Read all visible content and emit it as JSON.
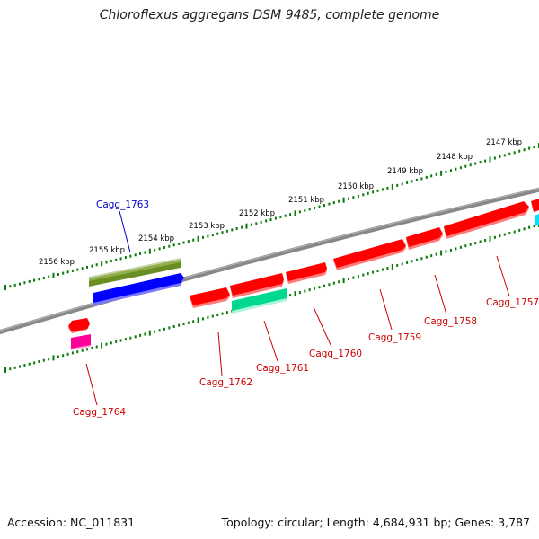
{
  "title": "Chloroflexus aggregans DSM 9485, complete genome",
  "footer": {
    "accession_label": "Accession: NC_011831",
    "genome_info": "Topology: circular; Length: 4,684,931 bp; Genes: 3,787"
  },
  "scale_labels": [
    "2147 kbp",
    "2148 kbp",
    "2149 kbp",
    "2150 kbp",
    "2151 kbp",
    "2152 kbp",
    "2153 kbp",
    "2154 kbp",
    "2155 kbp",
    "2156 kbp"
  ],
  "colors": {
    "backbone": "#888888",
    "tick": "#0a7a0a",
    "gene_red": "#ff0000",
    "gene_blue": "#0000ff",
    "gene_olive": "#6b8e23",
    "gene_aqua": "#00e0a0",
    "gene_magenta": "#ff0099",
    "label_red": "#cc0000",
    "label_blue": "#0000cc"
  },
  "gene_labels": {
    "cagg_1757": "Cagg_1757",
    "cagg_1758": "Cagg_1758",
    "cagg_1759": "Cagg_1759",
    "cagg_1760": "Cagg_1760",
    "cagg_1761": "Cagg_1761",
    "cagg_1762": "Cagg_1762",
    "cagg_1763": "Cagg_1763",
    "cagg_1764": "Cagg_1764"
  }
}
